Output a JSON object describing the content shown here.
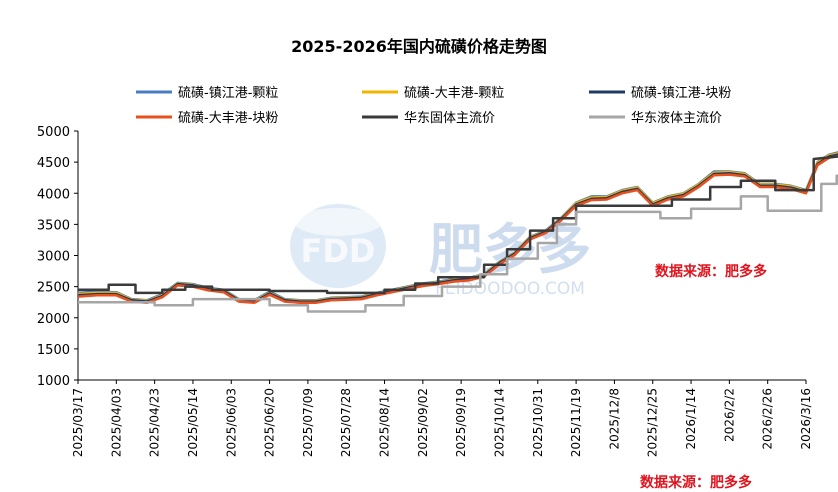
{
  "chart_data": {
    "type": "line",
    "title": "2025-2026年国内硫磺价格走势图",
    "xlabel": "",
    "ylabel": "",
    "ylim": [
      1000,
      5000
    ],
    "yticks": [
      1000,
      1500,
      2000,
      2500,
      3000,
      3500,
      4000,
      4500,
      5000
    ],
    "x_tick_labels": [
      "2025/03/17",
      "2025/04/03",
      "2025/04/23",
      "2025/05/14",
      "2025/06/03",
      "2025/06/20",
      "2025/07/09",
      "2025/07/28",
      "2025/08/14",
      "2025/09/02",
      "2025/09/19",
      "2025/10/14",
      "2025/10/31",
      "2025/11/19",
      "2025/12/8",
      "2025/12/25",
      "2026/1/14",
      "2026/2/2",
      "2026/2/26",
      "2026/3/16"
    ],
    "legend_position": "top",
    "grid": false,
    "series": [
      {
        "name": "硫磺-镇江港-颗粒",
        "color": "#4a7cc4",
        "points": [
          [
            0,
            2400
          ],
          [
            0.5,
            2420
          ],
          [
            1,
            2410
          ],
          [
            1.4,
            2300
          ],
          [
            1.8,
            2280
          ],
          [
            2.2,
            2380
          ],
          [
            2.6,
            2560
          ],
          [
            3,
            2540
          ],
          [
            3.4,
            2480
          ],
          [
            3.8,
            2450
          ],
          [
            4.2,
            2300
          ],
          [
            4.6,
            2280
          ],
          [
            5,
            2420
          ],
          [
            5.4,
            2300
          ],
          [
            5.8,
            2280
          ],
          [
            6.2,
            2280
          ],
          [
            6.6,
            2320
          ],
          [
            7,
            2330
          ],
          [
            7.4,
            2340
          ],
          [
            7.8,
            2400
          ],
          [
            8.2,
            2450
          ],
          [
            8.6,
            2500
          ],
          [
            9,
            2550
          ],
          [
            9.4,
            2580
          ],
          [
            9.8,
            2620
          ],
          [
            10.2,
            2640
          ],
          [
            10.6,
            2700
          ],
          [
            11,
            2900
          ],
          [
            11.4,
            3050
          ],
          [
            11.8,
            3300
          ],
          [
            12.2,
            3400
          ],
          [
            12.6,
            3600
          ],
          [
            13,
            3850
          ],
          [
            13.4,
            3950
          ],
          [
            13.8,
            3950
          ],
          [
            14.2,
            4050
          ],
          [
            14.6,
            4100
          ],
          [
            15,
            3850
          ],
          [
            15.4,
            3950
          ],
          [
            15.8,
            4000
          ],
          [
            16.2,
            4150
          ],
          [
            16.6,
            4350
          ],
          [
            17,
            4350
          ],
          [
            17.4,
            4320
          ],
          [
            17.8,
            4150
          ],
          [
            18.2,
            4150
          ],
          [
            18.6,
            4120
          ],
          [
            19,
            4050
          ],
          [
            19.3,
            4500
          ],
          [
            19.6,
            4620
          ],
          [
            20,
            4680
          ]
        ]
      },
      {
        "name": "硫磺-大丰港-颗粒",
        "color": "#f2b600",
        "points": [
          [
            0,
            2380
          ],
          [
            0.5,
            2400
          ],
          [
            1,
            2400
          ],
          [
            1.4,
            2290
          ],
          [
            1.8,
            2270
          ],
          [
            2.2,
            2360
          ],
          [
            2.6,
            2550
          ],
          [
            3,
            2530
          ],
          [
            3.4,
            2470
          ],
          [
            3.8,
            2440
          ],
          [
            4.2,
            2290
          ],
          [
            4.6,
            2270
          ],
          [
            5,
            2400
          ],
          [
            5.4,
            2290
          ],
          [
            5.8,
            2270
          ],
          [
            6.2,
            2270
          ],
          [
            6.6,
            2310
          ],
          [
            7,
            2320
          ],
          [
            7.4,
            2330
          ],
          [
            7.8,
            2390
          ],
          [
            8.2,
            2440
          ],
          [
            8.6,
            2490
          ],
          [
            9,
            2540
          ],
          [
            9.4,
            2570
          ],
          [
            9.8,
            2610
          ],
          [
            10.2,
            2630
          ],
          [
            10.6,
            2690
          ],
          [
            11,
            2890
          ],
          [
            11.4,
            3040
          ],
          [
            11.8,
            3290
          ],
          [
            12.2,
            3390
          ],
          [
            12.6,
            3590
          ],
          [
            13,
            3840
          ],
          [
            13.4,
            3930
          ],
          [
            13.8,
            3940
          ],
          [
            14.2,
            4040
          ],
          [
            14.6,
            4090
          ],
          [
            15,
            3840
          ],
          [
            15.4,
            3940
          ],
          [
            15.8,
            3990
          ],
          [
            16.2,
            4140
          ],
          [
            16.6,
            4330
          ],
          [
            17,
            4340
          ],
          [
            17.4,
            4310
          ],
          [
            17.8,
            4140
          ],
          [
            18.2,
            4140
          ],
          [
            18.6,
            4110
          ],
          [
            19,
            4040
          ],
          [
            19.3,
            4490
          ],
          [
            19.6,
            4610
          ],
          [
            20,
            4660
          ]
        ]
      },
      {
        "name": "硫磺-镇江港-块粉",
        "color": "#1f3864",
        "points": [
          [
            0,
            2360
          ],
          [
            0.5,
            2380
          ],
          [
            1,
            2380
          ],
          [
            1.4,
            2280
          ],
          [
            1.8,
            2260
          ],
          [
            2.2,
            2350
          ],
          [
            2.6,
            2540
          ],
          [
            3,
            2520
          ],
          [
            3.4,
            2460
          ],
          [
            3.8,
            2430
          ],
          [
            4.2,
            2280
          ],
          [
            4.6,
            2260
          ],
          [
            5,
            2390
          ],
          [
            5.4,
            2280
          ],
          [
            5.8,
            2260
          ],
          [
            6.2,
            2260
          ],
          [
            6.6,
            2300
          ],
          [
            7,
            2310
          ],
          [
            7.4,
            2320
          ],
          [
            7.8,
            2380
          ],
          [
            8.2,
            2430
          ],
          [
            8.6,
            2480
          ],
          [
            9,
            2530
          ],
          [
            9.4,
            2560
          ],
          [
            9.8,
            2600
          ],
          [
            10.2,
            2620
          ],
          [
            10.6,
            2680
          ],
          [
            11,
            2880
          ],
          [
            11.4,
            3030
          ],
          [
            11.8,
            3280
          ],
          [
            12.2,
            3380
          ],
          [
            12.6,
            3580
          ],
          [
            13,
            3820
          ],
          [
            13.4,
            3910
          ],
          [
            13.8,
            3920
          ],
          [
            14.2,
            4020
          ],
          [
            14.6,
            4070
          ],
          [
            15,
            3820
          ],
          [
            15.4,
            3920
          ],
          [
            15.8,
            3970
          ],
          [
            16.2,
            4120
          ],
          [
            16.6,
            4310
          ],
          [
            17,
            4320
          ],
          [
            17.4,
            4290
          ],
          [
            17.8,
            4120
          ],
          [
            18.2,
            4120
          ],
          [
            18.6,
            4090
          ],
          [
            19,
            4020
          ],
          [
            19.3,
            4470
          ],
          [
            19.6,
            4590
          ],
          [
            20,
            4640
          ]
        ]
      },
      {
        "name": "硫磺-大丰港-块粉",
        "color": "#e8501e",
        "points": [
          [
            0,
            2340
          ],
          [
            0.5,
            2360
          ],
          [
            1,
            2360
          ],
          [
            1.4,
            2260
          ],
          [
            1.8,
            2240
          ],
          [
            2.2,
            2330
          ],
          [
            2.6,
            2520
          ],
          [
            3,
            2500
          ],
          [
            3.4,
            2440
          ],
          [
            3.8,
            2410
          ],
          [
            4.2,
            2260
          ],
          [
            4.6,
            2240
          ],
          [
            5,
            2370
          ],
          [
            5.4,
            2260
          ],
          [
            5.8,
            2240
          ],
          [
            6.2,
            2240
          ],
          [
            6.6,
            2280
          ],
          [
            7,
            2290
          ],
          [
            7.4,
            2300
          ],
          [
            7.8,
            2360
          ],
          [
            8.2,
            2410
          ],
          [
            8.6,
            2460
          ],
          [
            9,
            2510
          ],
          [
            9.4,
            2540
          ],
          [
            9.8,
            2580
          ],
          [
            10.2,
            2600
          ],
          [
            10.6,
            2660
          ],
          [
            11,
            2860
          ],
          [
            11.4,
            3010
          ],
          [
            11.8,
            3260
          ],
          [
            12.2,
            3360
          ],
          [
            12.6,
            3560
          ],
          [
            13,
            3800
          ],
          [
            13.4,
            3890
          ],
          [
            13.8,
            3900
          ],
          [
            14.2,
            4000
          ],
          [
            14.6,
            4050
          ],
          [
            15,
            3800
          ],
          [
            15.4,
            3900
          ],
          [
            15.8,
            3950
          ],
          [
            16.2,
            4100
          ],
          [
            16.6,
            4290
          ],
          [
            17,
            4300
          ],
          [
            17.4,
            4270
          ],
          [
            17.8,
            4100
          ],
          [
            18.2,
            4100
          ],
          [
            18.6,
            4070
          ],
          [
            19,
            4000
          ],
          [
            19.3,
            4450
          ],
          [
            19.6,
            4570
          ],
          [
            20,
            4620
          ]
        ]
      },
      {
        "name": "华东固体主流价",
        "color": "#3a3a3a",
        "points": [
          [
            0,
            2450
          ],
          [
            0.8,
            2450
          ],
          [
            0.8,
            2530
          ],
          [
            1.5,
            2530
          ],
          [
            1.5,
            2400
          ],
          [
            2.2,
            2400
          ],
          [
            2.2,
            2450
          ],
          [
            2.8,
            2450
          ],
          [
            2.8,
            2500
          ],
          [
            3.5,
            2500
          ],
          [
            3.5,
            2450
          ],
          [
            5,
            2450
          ],
          [
            5,
            2430
          ],
          [
            6.5,
            2430
          ],
          [
            6.5,
            2400
          ],
          [
            8,
            2400
          ],
          [
            8,
            2450
          ],
          [
            8.8,
            2450
          ],
          [
            8.8,
            2550
          ],
          [
            9.4,
            2550
          ],
          [
            9.4,
            2650
          ],
          [
            10.6,
            2650
          ],
          [
            10.6,
            2850
          ],
          [
            11.2,
            2850
          ],
          [
            11.2,
            3100
          ],
          [
            11.8,
            3100
          ],
          [
            11.8,
            3400
          ],
          [
            12.4,
            3400
          ],
          [
            12.4,
            3600
          ],
          [
            13,
            3600
          ],
          [
            13,
            3800
          ],
          [
            15.5,
            3800
          ],
          [
            15.5,
            3900
          ],
          [
            16.5,
            3900
          ],
          [
            16.5,
            4100
          ],
          [
            17.3,
            4100
          ],
          [
            17.3,
            4200
          ],
          [
            18.2,
            4200
          ],
          [
            18.2,
            4050
          ],
          [
            19.2,
            4050
          ],
          [
            19.2,
            4550
          ],
          [
            20,
            4600
          ]
        ]
      },
      {
        "name": "华东液体主流价",
        "color": "#a6a6a6",
        "points": [
          [
            0,
            2250
          ],
          [
            2,
            2250
          ],
          [
            2,
            2200
          ],
          [
            3,
            2200
          ],
          [
            3,
            2300
          ],
          [
            5,
            2300
          ],
          [
            5,
            2200
          ],
          [
            6,
            2200
          ],
          [
            6,
            2100
          ],
          [
            7.5,
            2100
          ],
          [
            7.5,
            2200
          ],
          [
            8.5,
            2200
          ],
          [
            8.5,
            2350
          ],
          [
            9.5,
            2350
          ],
          [
            9.5,
            2500
          ],
          [
            10.5,
            2500
          ],
          [
            10.5,
            2700
          ],
          [
            11.2,
            2700
          ],
          [
            11.2,
            2950
          ],
          [
            12,
            2950
          ],
          [
            12,
            3200
          ],
          [
            12.5,
            3200
          ],
          [
            12.5,
            3500
          ],
          [
            13,
            3500
          ],
          [
            13,
            3700
          ],
          [
            15.2,
            3700
          ],
          [
            15.2,
            3600
          ],
          [
            16,
            3600
          ],
          [
            16,
            3750
          ],
          [
            17.3,
            3750
          ],
          [
            17.3,
            3950
          ],
          [
            18,
            3950
          ],
          [
            18,
            3720
          ],
          [
            19.4,
            3720
          ],
          [
            19.4,
            4150
          ],
          [
            19.8,
            4150
          ],
          [
            19.8,
            4280
          ],
          [
            20,
            4280
          ]
        ]
      }
    ]
  },
  "watermark": {
    "logo": "FDD",
    "brand": "肥多多",
    "url": "FEIDOODOO.COM"
  },
  "source_label_1": "数据来源：肥多多",
  "source_label_2": "数据来源：肥多多"
}
